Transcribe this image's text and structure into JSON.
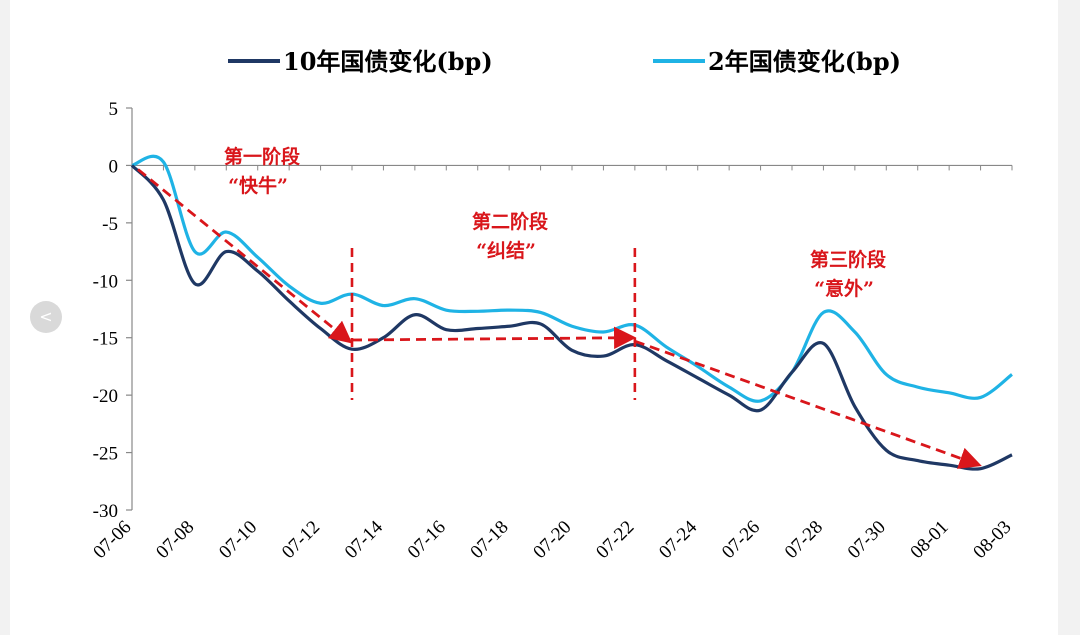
{
  "chart_data": {
    "type": "line",
    "title": "",
    "xlabel": "",
    "ylabel": "",
    "ylim": [
      -30,
      5
    ],
    "yticks": [
      5,
      0,
      -5,
      -10,
      -15,
      -20,
      -25,
      -30
    ],
    "xticks": [
      "07-06",
      "07-08",
      "07-10",
      "07-12",
      "07-14",
      "07-16",
      "07-18",
      "07-20",
      "07-22",
      "07-24",
      "07-26",
      "07-28",
      "07-30",
      "08-01",
      "08-03"
    ],
    "x_range": [
      "07-06",
      "08-03"
    ],
    "grid": false,
    "legend_position": "top",
    "series": [
      {
        "name": "10年国债变化(bp)",
        "color": "#1f3864",
        "x": [
          "07-06",
          "07-07",
          "07-08",
          "07-09",
          "07-10",
          "07-11",
          "07-12",
          "07-13",
          "07-14",
          "07-15",
          "07-16",
          "07-17",
          "07-18",
          "07-19",
          "07-20",
          "07-21",
          "07-22",
          "07-23",
          "07-24",
          "07-25",
          "07-26",
          "07-27",
          "07-28",
          "07-29",
          "07-30",
          "07-31",
          "08-01",
          "08-02",
          "08-03"
        ],
        "values": [
          0,
          -3,
          -10.3,
          -7.5,
          -9.2,
          -11.8,
          -14.2,
          -16,
          -15,
          -13,
          -14.3,
          -14.2,
          -14,
          -13.8,
          -16.1,
          -16.6,
          -15.6,
          -17,
          -18.5,
          -20,
          -21.3,
          -18,
          -15.5,
          -21,
          -24.8,
          -25.7,
          -26.1,
          -26.4,
          -25.2
        ]
      },
      {
        "name": "2年国债变化(bp)",
        "color": "#1fb3e5",
        "x": [
          "07-06",
          "07-07",
          "07-08",
          "07-09",
          "07-10",
          "07-11",
          "07-12",
          "07-13",
          "07-14",
          "07-15",
          "07-16",
          "07-17",
          "07-18",
          "07-19",
          "07-20",
          "07-21",
          "07-22",
          "07-23",
          "07-24",
          "07-25",
          "07-26",
          "07-27",
          "07-28",
          "07-29",
          "07-30",
          "07-31",
          "08-01",
          "08-02",
          "08-03"
        ],
        "values": [
          0,
          0.3,
          -7.5,
          -5.8,
          -8,
          -10.5,
          -12,
          -11.2,
          -12.2,
          -11.6,
          -12.6,
          -12.7,
          -12.6,
          -12.8,
          -14,
          -14.5,
          -13.9,
          -15.8,
          -17.5,
          -19.3,
          -20.5,
          -18,
          -12.8,
          -14.5,
          -18.2,
          -19.3,
          -19.8,
          -20.2,
          -18.2
        ]
      }
    ],
    "phases": [
      {
        "label": "第一阶段",
        "sublabel": "“快牛”",
        "from": "07-06",
        "to": "07-13",
        "start_value": 0,
        "end_value": -15.2
      },
      {
        "label": "第二阶段",
        "sublabel": "“纠结”",
        "from": "07-13",
        "to": "07-22",
        "start_value": -15.2,
        "end_value": -15.0
      },
      {
        "label": "第三阶段",
        "sublabel": "“意外”",
        "from": "07-22",
        "to": "08-02",
        "start_value": -15.3,
        "end_value": -26.0
      }
    ],
    "phase_dividers": [
      "07-13",
      "07-22"
    ],
    "annotation_color": "#d9161b"
  },
  "nav": {
    "prev_label": "<"
  }
}
